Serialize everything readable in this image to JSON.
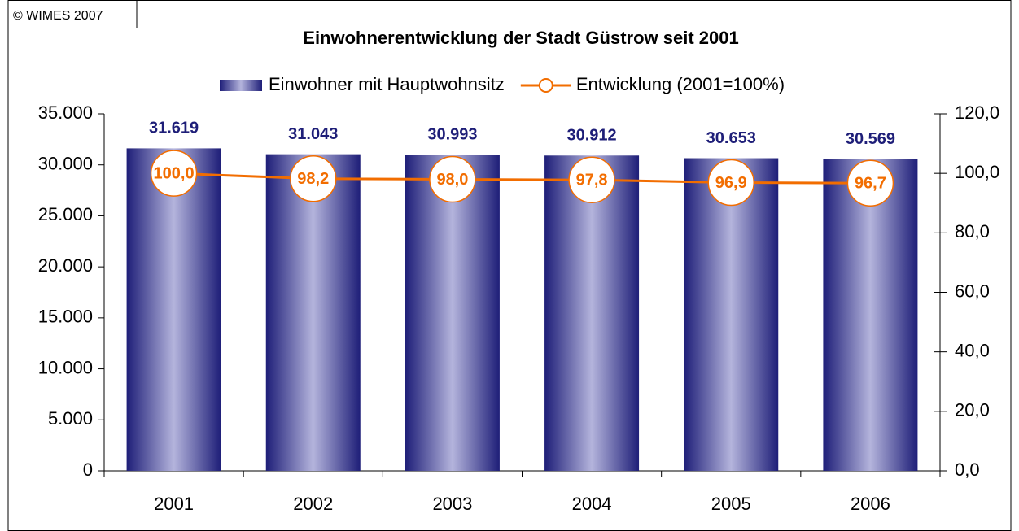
{
  "copyright": "© WIMES 2007",
  "chart_data": {
    "type": "bar",
    "title": "Einwohnerentwicklung der Stadt Güstrow seit 2001",
    "categories": [
      "2001",
      "2002",
      "2003",
      "2004",
      "2005",
      "2006"
    ],
    "series": [
      {
        "name": "Einwohner mit Hauptwohnsitz",
        "type": "bar",
        "color": "#1e1e78",
        "axis": "y",
        "values": [
          31619,
          31043,
          30993,
          30912,
          30653,
          30569
        ],
        "value_labels": [
          "31.619",
          "31.043",
          "30.993",
          "30.912",
          "30.653",
          "30.569"
        ]
      },
      {
        "name": "Entwicklung (2001=100%)",
        "type": "line",
        "color": "#f26d00",
        "axis": "y2",
        "values": [
          100.0,
          98.2,
          98.0,
          97.8,
          96.9,
          96.7
        ],
        "value_labels": [
          "100,0",
          "98,2",
          "98,0",
          "97,8",
          "96,9",
          "96,7"
        ]
      }
    ],
    "ylim": [
      0,
      35000
    ],
    "yticks": [
      0,
      {
        "value": 5000,
        "label": "5.000"
      },
      {
        "value": 10000,
        "label": "10.000"
      },
      {
        "value": 15000,
        "label": "15.000"
      },
      {
        "value": 20000,
        "label": "20.000"
      },
      {
        "value": 25000,
        "label": "25.000"
      },
      {
        "value": 30000,
        "label": "30.000"
      },
      {
        "value": 35000,
        "label": "35.000"
      }
    ],
    "y2lim": [
      0,
      120
    ],
    "y2ticks": [
      {
        "value": 0,
        "label": "0,0"
      },
      {
        "value": 20,
        "label": "20,0"
      },
      {
        "value": 40,
        "label": "40,0"
      },
      {
        "value": 60,
        "label": "60,0"
      },
      {
        "value": 80,
        "label": "80,0"
      },
      {
        "value": 100,
        "label": "100,0"
      },
      {
        "value": 120,
        "label": "120,0"
      }
    ],
    "legend": "top",
    "grid": false
  }
}
